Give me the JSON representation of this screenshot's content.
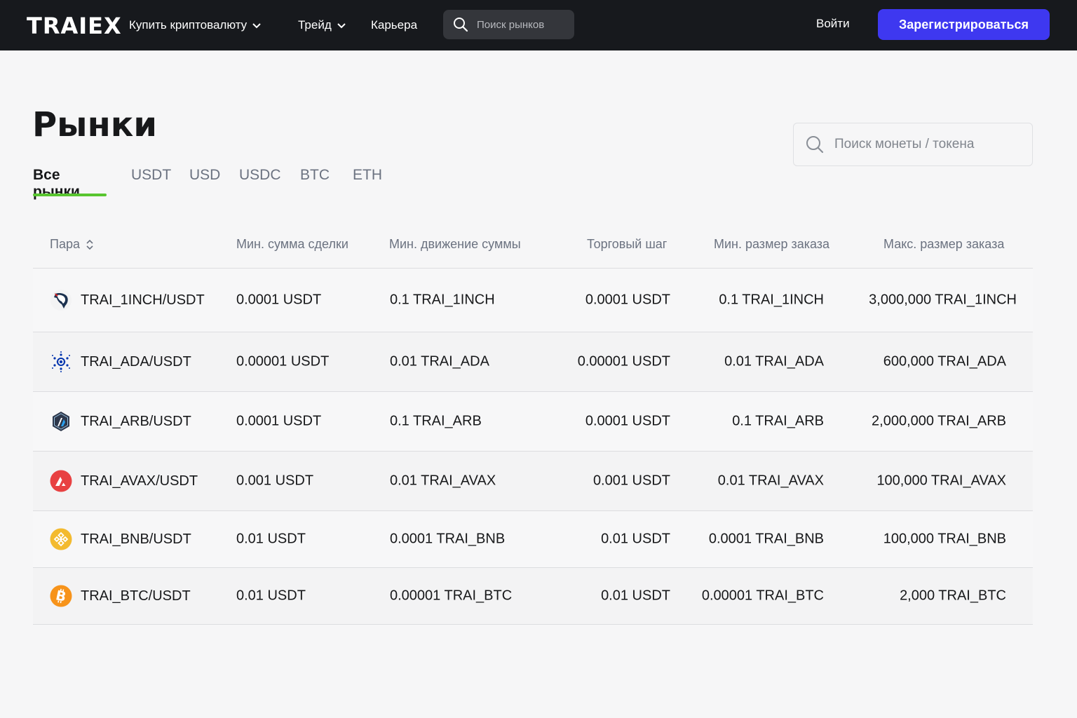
{
  "nav": {
    "logo": "TRAIEX",
    "buy_crypto": "Купить криптовалюту",
    "trade": "Трейд",
    "career": "Карьера",
    "search_placeholder": "Поиск рынков",
    "login": "Войти",
    "signup": "Зарегистрироваться"
  },
  "page": {
    "title": "Рынки",
    "coin_search_placeholder": "Поиск монеты / токена",
    "tabs": [
      {
        "label": "Все рынки",
        "active": true
      },
      {
        "label": "USDT"
      },
      {
        "label": "USD"
      },
      {
        "label": "USDC"
      },
      {
        "label": "BTC"
      },
      {
        "label": "ETH"
      }
    ]
  },
  "table": {
    "headers": {
      "pair": "Пара",
      "min_amount": "Мин. сумма сделки",
      "min_move": "Мин. движение суммы",
      "tick": "Торговый шаг",
      "min_order": "Мин. размер заказа",
      "max_order": "Макс. размер заказа"
    },
    "rows": [
      {
        "pair": "TRAI_1INCH/USDT",
        "icon": "1inch-icon",
        "min_amount": "0.0001 USDT",
        "min_move": "0.1 TRAI_1INCH",
        "tick": "0.0001 USDT",
        "min_order": "0.1 TRAI_1INCH",
        "max_order": "3,000,000 TRAI_1INCH"
      },
      {
        "pair": "TRAI_ADA/USDT",
        "icon": "cardano-icon",
        "min_amount": "0.00001 USDT",
        "min_move": "0.01 TRAI_ADA",
        "tick": "0.00001 USDT",
        "min_order": "0.01 TRAI_ADA",
        "max_order": "600,000 TRAI_ADA"
      },
      {
        "pair": "TRAI_ARB/USDT",
        "icon": "arbitrum-icon",
        "min_amount": "0.0001 USDT",
        "min_move": "0.1 TRAI_ARB",
        "tick": "0.0001 USDT",
        "min_order": "0.1 TRAI_ARB",
        "max_order": "2,000,000 TRAI_ARB"
      },
      {
        "pair": "TRAI_AVAX/USDT",
        "icon": "avalanche-icon",
        "min_amount": "0.001 USDT",
        "min_move": "0.01 TRAI_AVAX",
        "tick": "0.001 USDT",
        "min_order": "0.01 TRAI_AVAX",
        "max_order": "100,000 TRAI_AVAX"
      },
      {
        "pair": "TRAI_BNB/USDT",
        "icon": "bnb-icon",
        "min_amount": "0.01 USDT",
        "min_move": "0.0001 TRAI_BNB",
        "tick": "0.01 USDT",
        "min_order": "0.0001 TRAI_BNB",
        "max_order": "100,000 TRAI_BNB"
      },
      {
        "pair": "TRAI_BTC/USDT",
        "icon": "bitcoin-icon",
        "min_amount": "0.01 USDT",
        "min_move": "0.00001 TRAI_BTC",
        "tick": "0.01 USDT",
        "min_order": "0.00001 TRAI_BTC",
        "max_order": "2,000 TRAI_BTC"
      }
    ]
  },
  "colors": {
    "topbar": "#17191d",
    "signup": "#3e38f0",
    "tab_underline": "#58c52f"
  }
}
